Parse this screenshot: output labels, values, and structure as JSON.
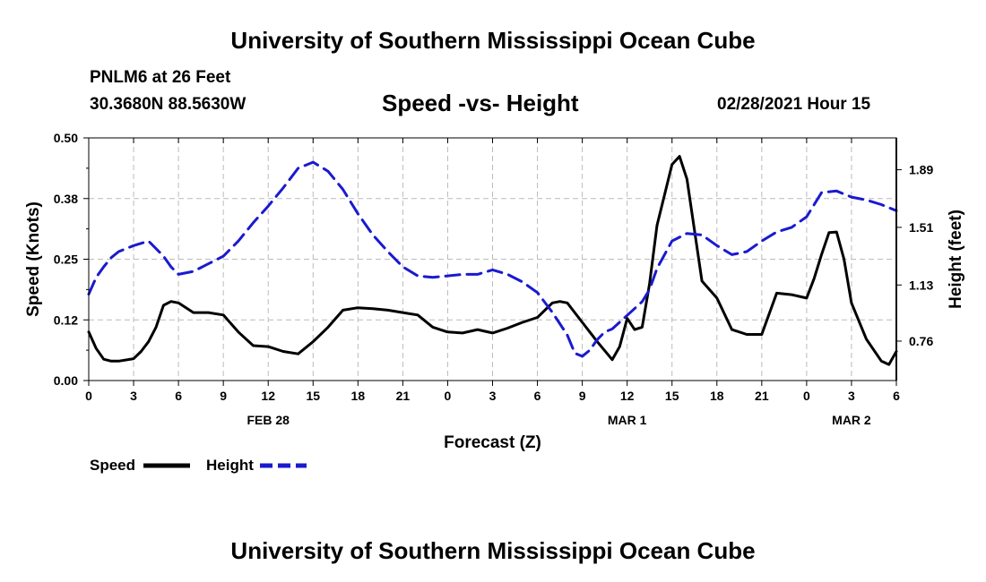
{
  "header": {
    "title": "University of Southern Mississippi Ocean Cube",
    "station": "PNLM6 at 26 Feet",
    "coordinates": "30.3680N 88.5630W",
    "datetime": "02/28/2021 Hour 15"
  },
  "footer": {
    "title": "University of Southern Mississippi Ocean Cube"
  },
  "colors": {
    "speed": "#000000",
    "height": "#1a1ad0",
    "grid": "#bbbbbb"
  },
  "chart_data": {
    "type": "line",
    "title": "Speed -vs- Height",
    "xlabel": "Forecast (Z)",
    "ylabel": "Speed (Knots)",
    "y2label": "Height (feet)",
    "xlim": [
      0,
      54
    ],
    "ylim": [
      0,
      0.5
    ],
    "y2lim": [
      0.5,
      2.1
    ],
    "grid": true,
    "x_ticks": [
      0,
      3,
      6,
      9,
      12,
      15,
      18,
      21,
      24,
      27,
      30,
      33,
      36,
      39,
      42,
      45,
      48,
      51,
      54
    ],
    "x_tick_labels": [
      "0",
      "3",
      "6",
      "9",
      "12",
      "15",
      "18",
      "21",
      "0",
      "3",
      "6",
      "9",
      "12",
      "15",
      "18",
      "21",
      "0",
      "3",
      "6"
    ],
    "date_labels": [
      {
        "x": 12,
        "label": "FEB 28"
      },
      {
        "x": 36,
        "label": "MAR 1"
      },
      {
        "x": 51,
        "label": "MAR 2"
      }
    ],
    "y_ticks": [
      0.0,
      0.125,
      0.25,
      0.375,
      0.5
    ],
    "y_tick_labels": [
      "0.00",
      "0.12",
      "0.25",
      "0.38",
      "0.50"
    ],
    "y2_ticks": [
      0.76,
      1.13,
      1.51,
      1.89
    ],
    "y2_tick_labels": [
      "0.76",
      "1.13",
      "1.51",
      "1.89"
    ],
    "legend": [
      {
        "name": "Speed",
        "style": "solid"
      },
      {
        "name": "Height",
        "style": "dashed"
      }
    ],
    "series": [
      {
        "name": "Speed",
        "axis": "left",
        "style": "solid",
        "x": [
          0,
          0.5,
          1,
          1.5,
          2,
          3,
          3.5,
          4,
          4.5,
          5,
          5.5,
          6,
          7,
          8,
          9,
          10,
          11,
          12,
          13,
          14,
          15,
          16,
          17,
          18,
          19,
          20,
          21,
          22,
          23,
          24,
          25,
          26,
          27,
          28,
          29,
          30,
          31,
          31.5,
          32,
          33,
          34,
          35,
          35.5,
          36,
          36.5,
          37,
          37.5,
          38,
          39,
          39.5,
          40,
          41,
          42,
          43,
          44,
          45,
          46,
          47,
          48,
          48.5,
          49,
          49.5,
          50,
          50.5,
          51,
          52,
          53,
          53.5,
          54
        ],
        "values": [
          0.1,
          0.066,
          0.044,
          0.04,
          0.04,
          0.045,
          0.06,
          0.08,
          0.11,
          0.155,
          0.163,
          0.16,
          0.14,
          0.14,
          0.135,
          0.1,
          0.072,
          0.07,
          0.06,
          0.055,
          0.08,
          0.11,
          0.145,
          0.15,
          0.148,
          0.145,
          0.14,
          0.135,
          0.11,
          0.1,
          0.098,
          0.105,
          0.098,
          0.108,
          0.12,
          0.13,
          0.16,
          0.163,
          0.16,
          0.12,
          0.08,
          0.043,
          0.07,
          0.128,
          0.105,
          0.11,
          0.2,
          0.32,
          0.445,
          0.462,
          0.415,
          0.205,
          0.17,
          0.105,
          0.095,
          0.095,
          0.18,
          0.177,
          0.17,
          0.21,
          0.26,
          0.305,
          0.306,
          0.25,
          0.16,
          0.085,
          0.04,
          0.033,
          0.06
        ]
      },
      {
        "name": "Height",
        "axis": "right",
        "style": "dashed",
        "x": [
          0,
          0.5,
          1,
          1.5,
          2,
          3,
          4,
          5,
          5.5,
          6,
          7,
          8,
          9,
          10,
          11,
          12,
          13,
          14,
          15,
          16,
          17,
          18,
          19,
          20,
          21,
          22,
          23,
          24,
          25,
          26,
          27,
          28,
          29,
          30,
          31,
          32,
          32.5,
          33,
          33.5,
          34,
          34.5,
          35,
          36,
          37,
          37.5,
          38,
          39,
          40,
          41,
          42,
          43,
          44,
          45,
          46,
          47,
          48,
          49,
          50,
          50.5,
          51,
          52,
          53,
          54
        ],
        "values": [
          1.07,
          1.18,
          1.25,
          1.31,
          1.35,
          1.39,
          1.42,
          1.32,
          1.25,
          1.2,
          1.22,
          1.27,
          1.32,
          1.42,
          1.54,
          1.65,
          1.77,
          1.9,
          1.94,
          1.88,
          1.76,
          1.6,
          1.46,
          1.35,
          1.25,
          1.19,
          1.18,
          1.19,
          1.2,
          1.2,
          1.23,
          1.2,
          1.15,
          1.08,
          0.95,
          0.8,
          0.68,
          0.66,
          0.7,
          0.77,
          0.82,
          0.84,
          0.93,
          1.02,
          1.1,
          1.24,
          1.42,
          1.47,
          1.46,
          1.39,
          1.33,
          1.35,
          1.42,
          1.48,
          1.51,
          1.58,
          1.74,
          1.75,
          1.73,
          1.71,
          1.69,
          1.66,
          1.62
        ]
      }
    ]
  }
}
